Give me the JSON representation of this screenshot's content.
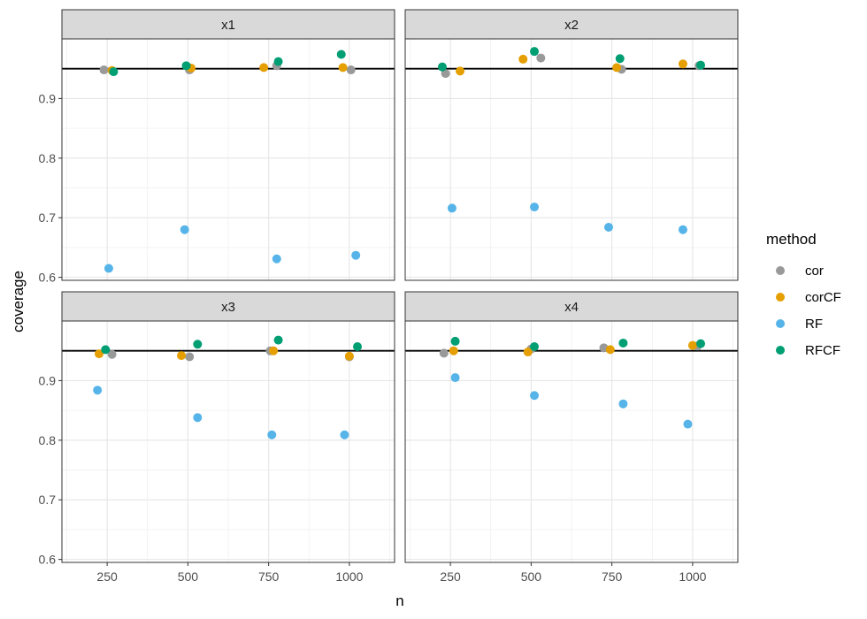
{
  "chart_data": {
    "type": "scatter",
    "xlabel": "n",
    "ylabel": "coverage",
    "reference_line": 0.95,
    "x_ticks": [
      250,
      500,
      750,
      1000
    ],
    "y_ticks": [
      0.6,
      0.7,
      0.8,
      0.9
    ],
    "ylim": [
      0.595,
      1.0
    ],
    "xlim": [
      110,
      1140
    ],
    "grid": true,
    "legend": {
      "title": "method",
      "position": "right",
      "entries": [
        {
          "name": "cor",
          "color": "#999999"
        },
        {
          "name": "corCF",
          "color": "#E69F00"
        },
        {
          "name": "RF",
          "color": "#56B4E9"
        },
        {
          "name": "RFCF",
          "color": "#009E73"
        }
      ]
    },
    "panels": [
      {
        "title": "x1",
        "series": [
          {
            "name": "cor",
            "points": [
              [
                240,
                0.948
              ],
              [
                505,
                0.948
              ],
              [
                775,
                0.955
              ],
              [
                1005,
                0.948
              ]
            ]
          },
          {
            "name": "corCF",
            "points": [
              [
                265,
                0.947
              ],
              [
                510,
                0.951
              ],
              [
                735,
                0.952
              ],
              [
                980,
                0.952
              ]
            ]
          },
          {
            "name": "RF",
            "points": [
              [
                255,
                0.615
              ],
              [
                490,
                0.68
              ],
              [
                775,
                0.631
              ],
              [
                1020,
                0.637
              ]
            ]
          },
          {
            "name": "RFCF",
            "points": [
              [
                270,
                0.945
              ],
              [
                495,
                0.955
              ],
              [
                780,
                0.962
              ],
              [
                975,
                0.974
              ]
            ]
          }
        ]
      },
      {
        "title": "x2",
        "series": [
          {
            "name": "cor",
            "points": [
              [
                235,
                0.942
              ],
              [
                530,
                0.968
              ],
              [
                780,
                0.949
              ],
              [
                1020,
                0.955
              ]
            ]
          },
          {
            "name": "corCF",
            "points": [
              [
                280,
                0.946
              ],
              [
                475,
                0.966
              ],
              [
                765,
                0.952
              ],
              [
                970,
                0.958
              ]
            ]
          },
          {
            "name": "RF",
            "points": [
              [
                255,
                0.716
              ],
              [
                510,
                0.718
              ],
              [
                740,
                0.684
              ],
              [
                970,
                0.68
              ]
            ]
          },
          {
            "name": "RFCF",
            "points": [
              [
                225,
                0.953
              ],
              [
                510,
                0.979
              ],
              [
                775,
                0.967
              ],
              [
                1025,
                0.956
              ]
            ]
          }
        ]
      },
      {
        "title": "x3",
        "series": [
          {
            "name": "cor",
            "points": [
              [
                265,
                0.944
              ],
              [
                505,
                0.94
              ],
              [
                755,
                0.95
              ],
              [
                1000,
                0.94
              ]
            ]
          },
          {
            "name": "corCF",
            "points": [
              [
                225,
                0.945
              ],
              [
                480,
                0.942
              ],
              [
                765,
                0.95
              ],
              [
                1000,
                0.941
              ]
            ]
          },
          {
            "name": "RF",
            "points": [
              [
                220,
                0.884
              ],
              [
                530,
                0.838
              ],
              [
                760,
                0.809
              ],
              [
                985,
                0.809
              ]
            ]
          },
          {
            "name": "RFCF",
            "points": [
              [
                245,
                0.952
              ],
              [
                530,
                0.961
              ],
              [
                780,
                0.968
              ],
              [
                1025,
                0.957
              ]
            ]
          }
        ]
      },
      {
        "title": "x4",
        "series": [
          {
            "name": "cor",
            "points": [
              [
                230,
                0.946
              ],
              [
                500,
                0.953
              ],
              [
                725,
                0.955
              ],
              [
                1015,
                0.958
              ]
            ]
          },
          {
            "name": "corCF",
            "points": [
              [
                260,
                0.95
              ],
              [
                490,
                0.948
              ],
              [
                745,
                0.952
              ],
              [
                1000,
                0.959
              ]
            ]
          },
          {
            "name": "RF",
            "points": [
              [
                265,
                0.905
              ],
              [
                510,
                0.875
              ],
              [
                785,
                0.861
              ],
              [
                985,
                0.827
              ]
            ]
          },
          {
            "name": "RFCF",
            "points": [
              [
                265,
                0.966
              ],
              [
                510,
                0.957
              ],
              [
                785,
                0.963
              ],
              [
                1025,
                0.962
              ]
            ]
          }
        ]
      }
    ]
  }
}
